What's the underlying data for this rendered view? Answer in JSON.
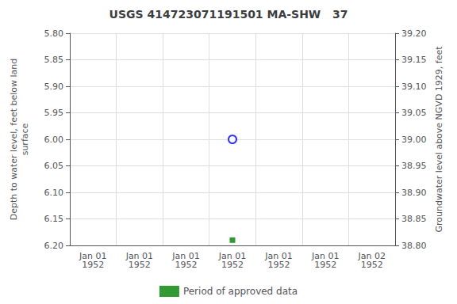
{
  "chart_data": {
    "type": "scatter",
    "title": "USGS 414723071191501 MA-SHW   37",
    "y_label": "Depth to water level, feet below land\nsurface",
    "y2_label": "Groundwater level above NGVD 1929, feet",
    "categories": [
      "Jan 01\n1952",
      "Jan 01\n1952",
      "Jan 01\n1952",
      "Jan 01\n1952",
      "Jan 01\n1952",
      "Jan 01\n1952",
      "Jan 02\n1952"
    ],
    "series": [
      {
        "color": "#0000ff",
        "marker": "open_circle",
        "values": [
          null,
          null,
          null,
          6.0,
          null,
          null,
          null
        ]
      },
      {
        "name": "Period of approved data",
        "color": "#008000",
        "marker": "square",
        "values": [
          null,
          null,
          null,
          6.19,
          null,
          null,
          null
        ]
      }
    ],
    "ylim": [
      6.2,
      5.8
    ],
    "yticks": [
      {
        "value": 5.8,
        "label": "5.80"
      },
      {
        "value": 5.85,
        "label": "5.85"
      },
      {
        "value": 5.9,
        "label": "5.90"
      },
      {
        "value": 5.95,
        "label": "5.95"
      },
      {
        "value": 6.0,
        "label": "6.00"
      },
      {
        "value": 6.05,
        "label": "6.05"
      },
      {
        "value": 6.1,
        "label": "6.10"
      },
      {
        "value": 6.15,
        "label": "6.15"
      },
      {
        "value": 6.2,
        "label": "6.20"
      }
    ],
    "y2lim": [
      38.8,
      39.2
    ],
    "y2ticks": [
      {
        "value": 39.2,
        "label": "39.20"
      },
      {
        "value": 39.15,
        "label": "39.15"
      },
      {
        "value": 39.1,
        "label": "39.10"
      },
      {
        "value": 39.05,
        "label": "39.05"
      },
      {
        "value": 39.0,
        "label": "39.00"
      },
      {
        "value": 38.95,
        "label": "38.95"
      },
      {
        "value": 38.9,
        "label": "38.90"
      },
      {
        "value": 38.85,
        "label": "38.85"
      },
      {
        "value": 38.8,
        "label": "38.80"
      }
    ],
    "grid": true,
    "legend": "bottom"
  }
}
